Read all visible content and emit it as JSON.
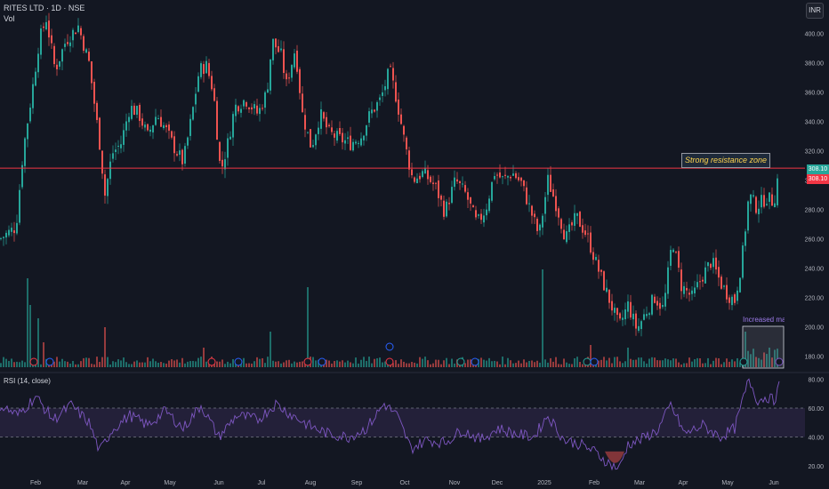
{
  "header": {
    "title": "RITES LTD · 1D · NSE",
    "vol_label": "Vol",
    "currency": "INR"
  },
  "annotations": {
    "resistance_text": "Strong resistance zone",
    "volume_text": "Increased market participation"
  },
  "price_tags": {
    "current": "308.10",
    "resistance": "308.10"
  },
  "rsi_panel": {
    "label": "RSI (14, close)"
  },
  "colors": {
    "bg": "#131722",
    "up": "#26a69a",
    "down": "#ef5350",
    "resistance": "#f23645",
    "rsi": "#7e57c2",
    "grid_text": "#b2b5be"
  },
  "chart_data": {
    "type": "candlestick",
    "title": "RITES LTD · 1D · NSE",
    "price_axis": {
      "ticks": [
        180,
        200,
        220,
        240,
        260,
        280,
        300,
        320,
        340,
        360,
        380,
        400
      ],
      "range": [
        170,
        412
      ]
    },
    "x_ticks": [
      "Feb",
      "Mar",
      "Apr",
      "May",
      "Jun",
      "Jul",
      "Aug",
      "Sep",
      "Oct",
      "Nov",
      "Dec",
      "2025",
      "Feb",
      "Mar",
      "Apr",
      "May",
      "Jun"
    ],
    "resistance_level": 308.1,
    "rsi_axis": {
      "ticks": [
        20,
        40,
        60,
        80
      ],
      "range": [
        15,
        85
      ],
      "bands": [
        40,
        60
      ]
    },
    "price_anchors": [
      [
        0,
        260
      ],
      [
        18,
        268
      ],
      [
        26,
        320
      ],
      [
        36,
        360
      ],
      [
        44,
        395
      ],
      [
        52,
        410
      ],
      [
        62,
        375
      ],
      [
        74,
        395
      ],
      [
        88,
        405
      ],
      [
        100,
        380
      ],
      [
        112,
        325
      ],
      [
        118,
        290
      ],
      [
        126,
        318
      ],
      [
        136,
        325
      ],
      [
        146,
        350
      ],
      [
        156,
        345
      ],
      [
        166,
        330
      ],
      [
        176,
        345
      ],
      [
        186,
        335
      ],
      [
        196,
        322
      ],
      [
        206,
        312
      ],
      [
        216,
        345
      ],
      [
        224,
        375
      ],
      [
        232,
        378
      ],
      [
        240,
        360
      ],
      [
        248,
        305
      ],
      [
        256,
        325
      ],
      [
        264,
        350
      ],
      [
        276,
        355
      ],
      [
        290,
        345
      ],
      [
        300,
        360
      ],
      [
        306,
        395
      ],
      [
        316,
        385
      ],
      [
        322,
        365
      ],
      [
        332,
        390
      ],
      [
        340,
        345
      ],
      [
        350,
        322
      ],
      [
        360,
        345
      ],
      [
        370,
        332
      ],
      [
        382,
        328
      ],
      [
        394,
        325
      ],
      [
        406,
        330
      ],
      [
        416,
        345
      ],
      [
        428,
        355
      ],
      [
        438,
        375
      ],
      [
        446,
        355
      ],
      [
        456,
        322
      ],
      [
        464,
        300
      ],
      [
        476,
        305
      ],
      [
        490,
        295
      ],
      [
        500,
        278
      ],
      [
        512,
        300
      ],
      [
        524,
        290
      ],
      [
        536,
        270
      ],
      [
        546,
        280
      ],
      [
        556,
        305
      ],
      [
        566,
        300
      ],
      [
        576,
        305
      ],
      [
        586,
        298
      ],
      [
        596,
        280
      ],
      [
        606,
        262
      ],
      [
        616,
        300
      ],
      [
        626,
        282
      ],
      [
        636,
        260
      ],
      [
        648,
        275
      ],
      [
        660,
        262
      ],
      [
        672,
        240
      ],
      [
        684,
        220
      ],
      [
        696,
        200
      ],
      [
        706,
        215
      ],
      [
        716,
        198
      ],
      [
        726,
        210
      ],
      [
        736,
        220
      ],
      [
        746,
        212
      ],
      [
        756,
        260
      ],
      [
        766,
        228
      ],
      [
        778,
        220
      ],
      [
        790,
        235
      ],
      [
        800,
        245
      ],
      [
        810,
        230
      ],
      [
        818,
        222
      ],
      [
        826,
        218
      ],
      [
        834,
        245
      ],
      [
        842,
        290
      ],
      [
        850,
        282
      ],
      [
        862,
        288
      ],
      [
        870,
        285
      ],
      [
        876,
        308
      ]
    ],
    "rsi_anchors": [
      [
        0,
        62
      ],
      [
        20,
        55
      ],
      [
        40,
        68
      ],
      [
        60,
        52
      ],
      [
        80,
        62
      ],
      [
        100,
        50
      ],
      [
        112,
        30
      ],
      [
        126,
        45
      ],
      [
        146,
        55
      ],
      [
        166,
        48
      ],
      [
        186,
        58
      ],
      [
        206,
        46
      ],
      [
        226,
        62
      ],
      [
        246,
        40
      ],
      [
        266,
        55
      ],
      [
        290,
        52
      ],
      [
        310,
        63
      ],
      [
        326,
        56
      ],
      [
        350,
        47
      ],
      [
        370,
        42
      ],
      [
        392,
        40
      ],
      [
        412,
        46
      ],
      [
        432,
        63
      ],
      [
        446,
        55
      ],
      [
        462,
        32
      ],
      [
        480,
        38
      ],
      [
        500,
        36
      ],
      [
        520,
        45
      ],
      [
        540,
        38
      ],
      [
        560,
        46
      ],
      [
        580,
        42
      ],
      [
        600,
        40
      ],
      [
        616,
        55
      ],
      [
        634,
        38
      ],
      [
        652,
        35
      ],
      [
        668,
        30
      ],
      [
        684,
        22
      ],
      [
        696,
        18
      ],
      [
        706,
        35
      ],
      [
        720,
        38
      ],
      [
        740,
        45
      ],
      [
        754,
        62
      ],
      [
        770,
        42
      ],
      [
        790,
        48
      ],
      [
        810,
        40
      ],
      [
        826,
        46
      ],
      [
        842,
        80
      ],
      [
        852,
        65
      ],
      [
        862,
        68
      ],
      [
        870,
        65
      ],
      [
        876,
        75
      ]
    ],
    "volume_spikes": [
      [
        30,
        100
      ],
      [
        34,
        70
      ],
      [
        44,
        55
      ],
      [
        50,
        28
      ],
      [
        118,
        45
      ],
      [
        230,
        22
      ],
      [
        304,
        40
      ],
      [
        346,
        90
      ],
      [
        610,
        110
      ],
      [
        664,
        25
      ],
      [
        706,
        22
      ],
      [
        838,
        40
      ],
      [
        864,
        22
      ]
    ],
    "event_markers": [
      [
        38,
        "red"
      ],
      [
        56,
        "blue"
      ],
      [
        238,
        "red"
      ],
      [
        268,
        "blue"
      ],
      [
        346,
        "red"
      ],
      [
        362,
        "blue"
      ],
      [
        438,
        "red"
      ],
      [
        518,
        "green"
      ],
      [
        534,
        "blue"
      ],
      [
        660,
        "green"
      ],
      [
        668,
        "blue"
      ],
      [
        836,
        "green"
      ],
      [
        876,
        "purple"
      ]
    ]
  }
}
